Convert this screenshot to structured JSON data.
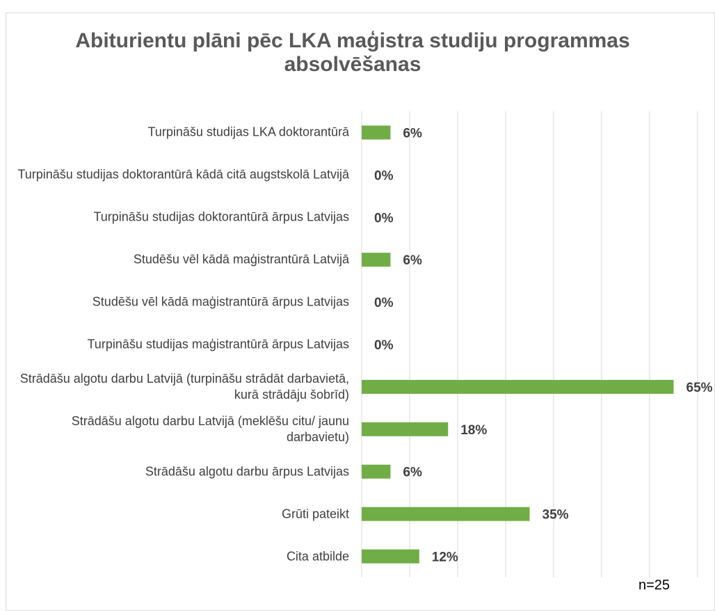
{
  "chart_data": {
    "type": "bar",
    "orientation": "horizontal",
    "title": "Abiturientu plāni pēc LKA maģistra studiju programmas absolvēšanas",
    "categories": [
      "Turpināšu studijas LKA doktorantūrā",
      "Turpināšu studijas doktorantūrā kādā citā augstskolā Latvijā",
      "Turpināšu studijas doktorantūrā ārpus Latvijas",
      "Studēšu vēl kādā maģistrantūrā Latvijā",
      "Studēšu vēl kādā maģistrantūrā ārpus Latvijas",
      "Turpināšu studijas maģistrantūrā ārpus Latvijas",
      "Strādāšu algotu darbu Latvijā (turpināšu strādāt darbavietā, kurā strādāju šobrīd)",
      "Strādāšu algotu darbu Latvijā (meklēšu citu/ jaunu darbavietu)",
      "Strādāšu algotu darbu ārpus Latvijas",
      "Grūti pateikt",
      "Cita atbilde"
    ],
    "values": [
      6,
      0,
      0,
      6,
      0,
      0,
      65,
      18,
      6,
      35,
      12
    ],
    "value_labels": [
      "6%",
      "0%",
      "0%",
      "6%",
      "0%",
      "0%",
      "65%",
      "18%",
      "6%",
      "35%",
      "12%"
    ],
    "color": "#70ad47",
    "xlim": [
      0,
      70
    ],
    "xticks": [
      0,
      10,
      20,
      30,
      40,
      50,
      60,
      70
    ],
    "grid": true,
    "annotation": "n=25"
  }
}
